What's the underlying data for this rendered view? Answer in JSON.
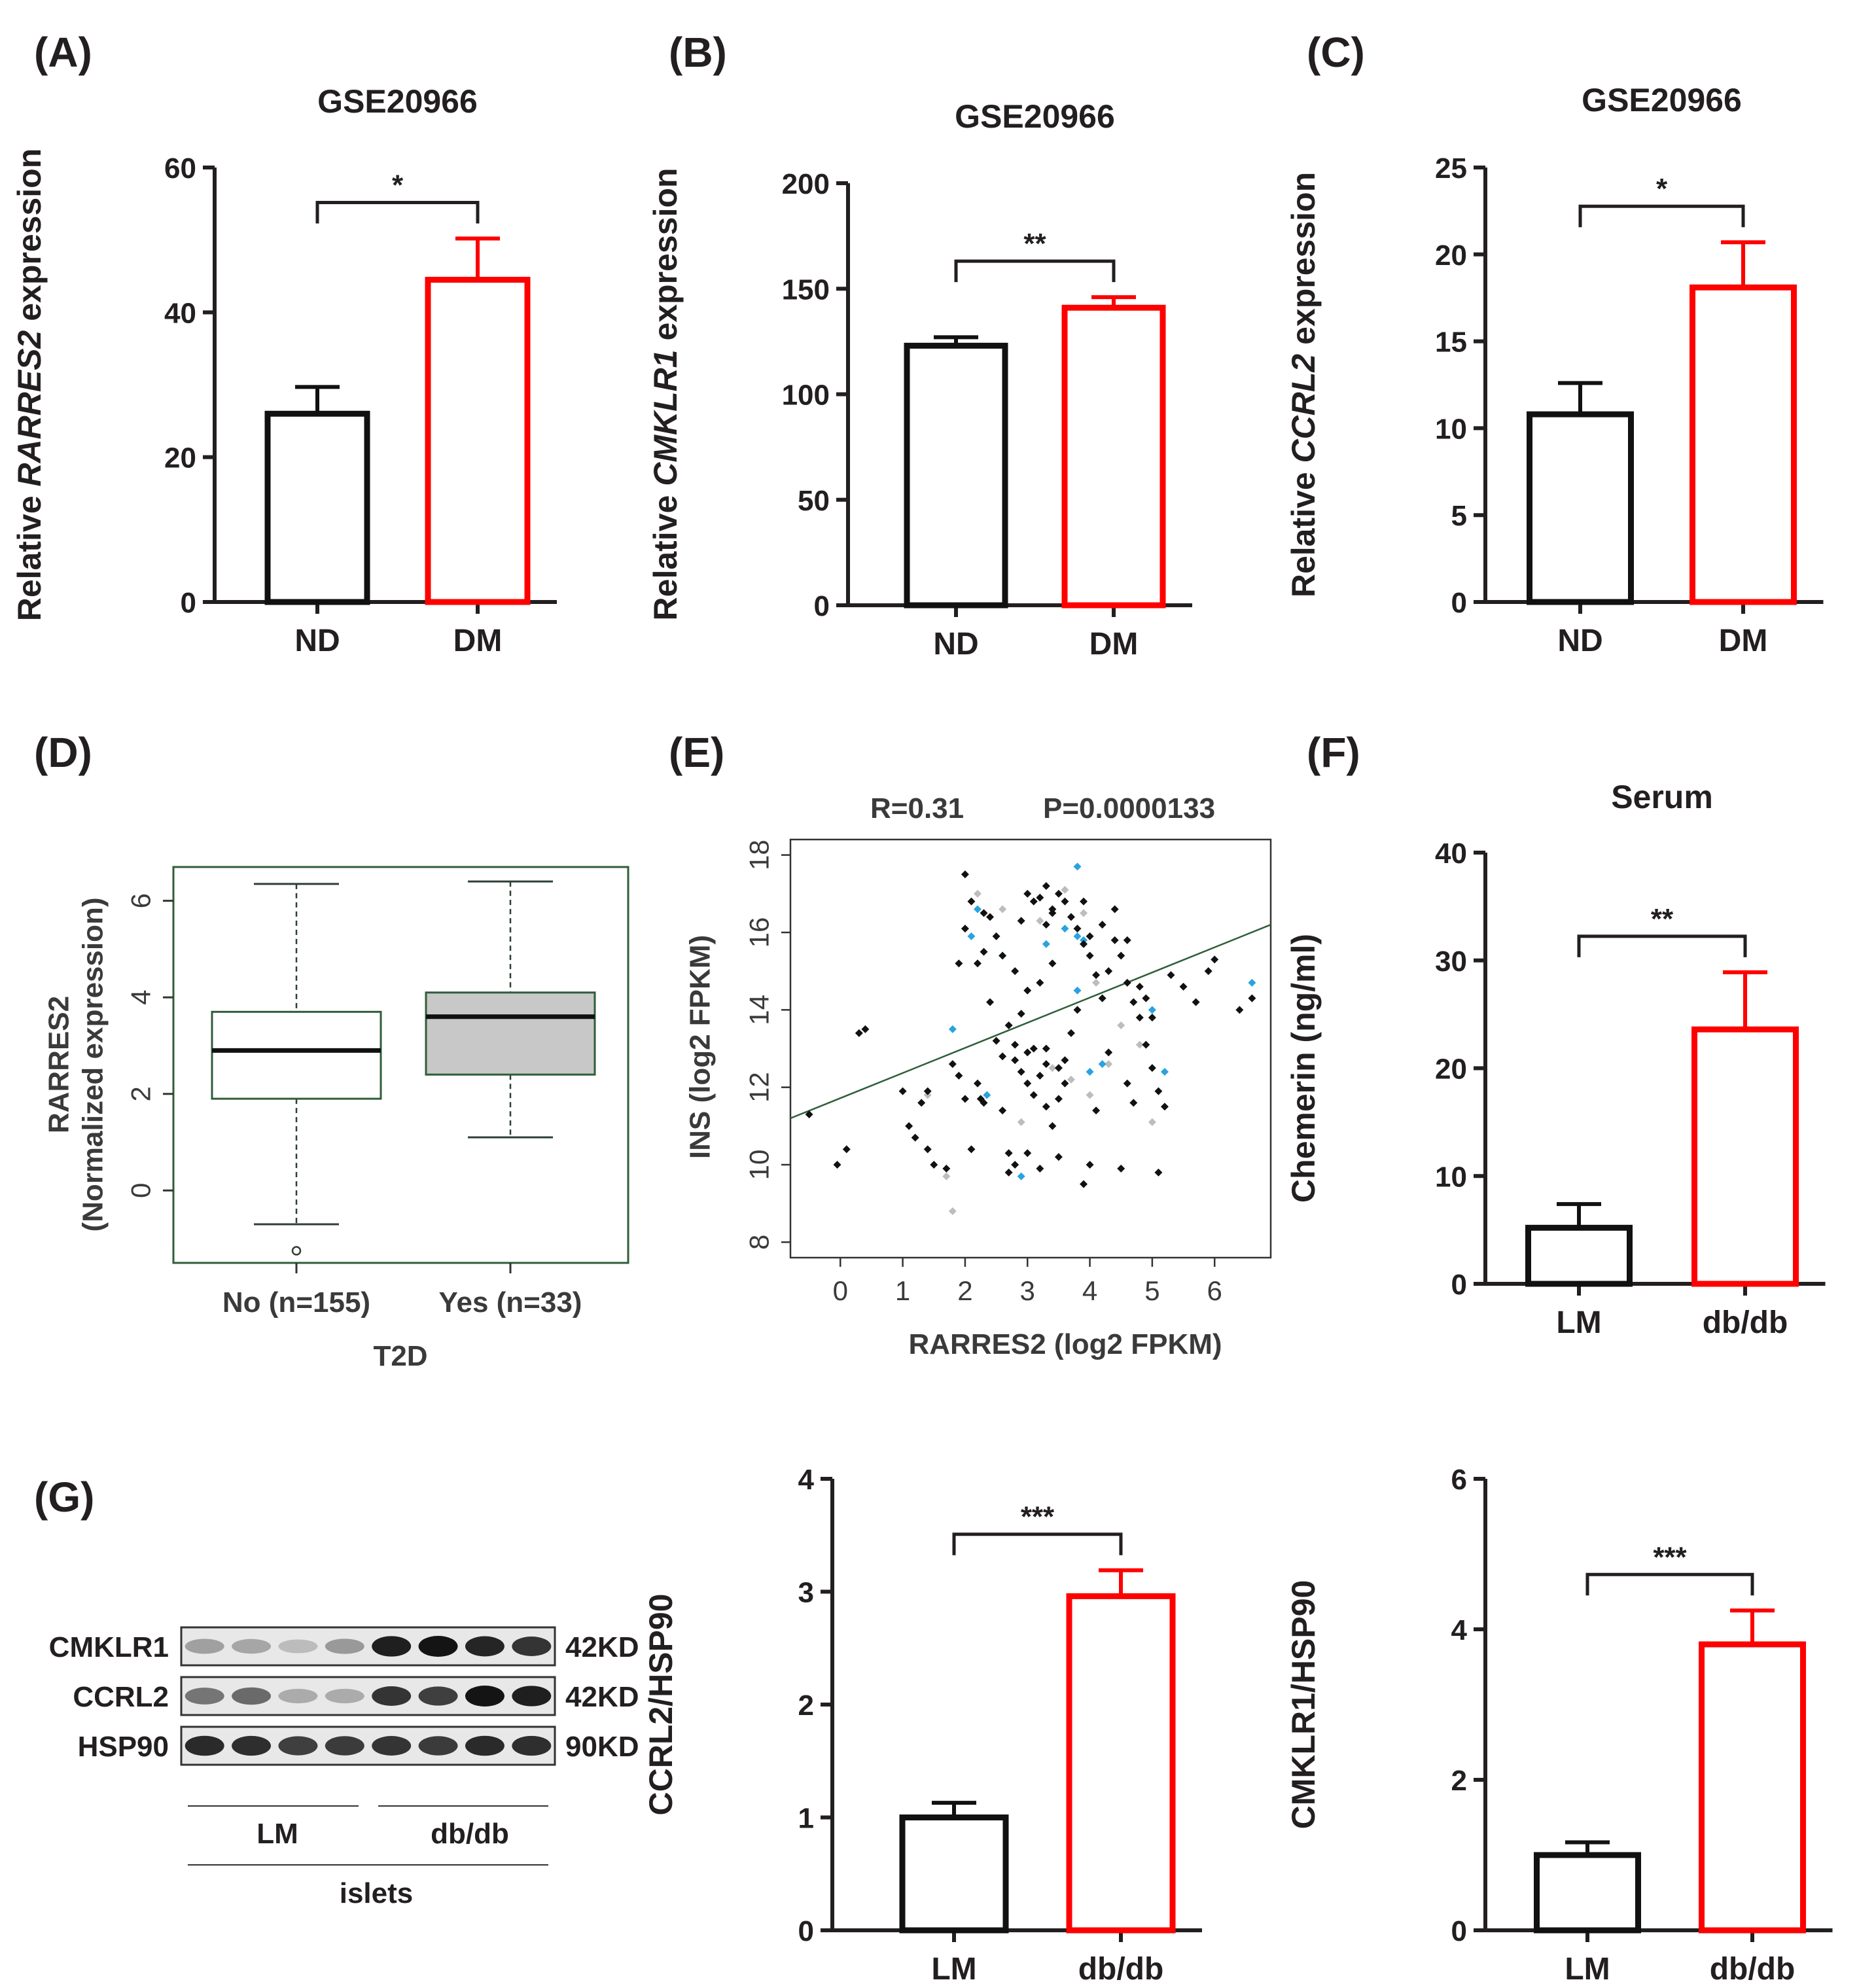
{
  "colors": {
    "black_bar": "#111111",
    "red_bar": "#ff0000",
    "text": "#231f20",
    "box_frame": "#2f5d3a",
    "box_fill_yes": "#c8c8c8",
    "fit_line": "#2f5d3a",
    "dot_black": "#111111",
    "dot_grey": "#bdbdbd",
    "dot_blue": "#29a3e0"
  },
  "panels": {
    "A": {
      "label": "(A)"
    },
    "B": {
      "label": "(B)"
    },
    "C": {
      "label": "(C)"
    },
    "D": {
      "label": "(D)"
    },
    "E": {
      "label": "(E)"
    },
    "F": {
      "label": "(F)"
    },
    "G": {
      "label": "(G)"
    }
  },
  "chart_data": [
    {
      "id": "A",
      "type": "bar",
      "title": "GSE20966",
      "ylabel_pre": "Relative ",
      "ylabel_gene": "RARRES2",
      "ylabel_post": " expression",
      "categories": [
        "ND",
        "DM"
      ],
      "values": [
        26,
        44.5
      ],
      "errors": [
        3.7,
        5.7
      ],
      "ylim": [
        0,
        60
      ],
      "yticks": [
        0,
        20,
        40,
        60
      ],
      "significance": "*"
    },
    {
      "id": "B",
      "type": "bar",
      "title": "GSE20966",
      "ylabel_pre": "Relative ",
      "ylabel_gene": "CMKLR1",
      "ylabel_post": " expression",
      "categories": [
        "ND",
        "DM"
      ],
      "values": [
        123,
        141
      ],
      "errors": [
        4,
        5
      ],
      "ylim": [
        0,
        200
      ],
      "yticks": [
        0,
        50,
        100,
        150,
        200
      ],
      "significance": "**"
    },
    {
      "id": "C",
      "type": "bar",
      "title": "GSE20966",
      "ylabel_pre": "Relative ",
      "ylabel_gene": "CCRL2",
      "ylabel_post": " expression",
      "categories": [
        "ND",
        "DM"
      ],
      "values": [
        10.8,
        18.1
      ],
      "errors": [
        1.8,
        2.6
      ],
      "ylim": [
        0,
        25
      ],
      "yticks": [
        0,
        5,
        10,
        15,
        20,
        25
      ],
      "significance": "*"
    },
    {
      "id": "D",
      "type": "box",
      "xlabel": "T2D",
      "ylabel_line1": "RARRES2",
      "ylabel_line2": "(Normalized expression)",
      "categories": [
        "No (n=155)",
        "Yes (n=33)"
      ],
      "ylim": [
        -1.5,
        6.7
      ],
      "yticks": [
        0,
        2,
        4,
        6
      ],
      "boxes": [
        {
          "whisker_low": -0.7,
          "q1": 1.9,
          "median": 2.9,
          "q3": 3.7,
          "whisker_high": 6.35,
          "outliers": [
            -1.25
          ]
        },
        {
          "whisker_low": 1.1,
          "q1": 2.4,
          "median": 3.6,
          "q3": 4.1,
          "whisker_high": 6.4,
          "outliers": []
        }
      ]
    },
    {
      "id": "E",
      "type": "scatter",
      "annotation_r": "R=0.31",
      "annotation_p": "P=0.0000133",
      "xlabel": "RARRES2 (log2 FPKM)",
      "ylabel": "INS (log2 FPKM)",
      "xlim": [
        -0.8,
        6.9
      ],
      "ylim": [
        7.6,
        18.4
      ],
      "xticks": [
        0,
        1,
        2,
        3,
        4,
        5,
        6
      ],
      "yticks": [
        8,
        10,
        12,
        14,
        16,
        18
      ],
      "fit_line": {
        "x": [
          -0.8,
          6.9
        ],
        "y": [
          11.2,
          16.2
        ]
      },
      "points_black": [
        [
          -0.5,
          11.3
        ],
        [
          -0.05,
          10
        ],
        [
          0.3,
          13.4
        ],
        [
          0.4,
          13.5
        ],
        [
          0.1,
          10.4
        ],
        [
          1.0,
          11.9
        ],
        [
          1.1,
          11.0
        ],
        [
          1.2,
          10.7
        ],
        [
          1.3,
          11.6
        ],
        [
          1.4,
          10.4
        ],
        [
          1.5,
          10.0
        ],
        [
          1.7,
          9.9
        ],
        [
          1.8,
          12.6
        ],
        [
          1.9,
          12.3
        ],
        [
          2.0,
          11.7
        ],
        [
          2.1,
          10.4
        ],
        [
          2.2,
          12.1
        ],
        [
          2.25,
          11.7
        ],
        [
          1.9,
          15.2
        ],
        [
          2.0,
          16.1
        ],
        [
          2.1,
          16.8
        ],
        [
          2.3,
          15.5
        ],
        [
          2.4,
          14.2
        ],
        [
          2.5,
          13.2
        ],
        [
          2.6,
          12.8
        ],
        [
          2.6,
          11.4
        ],
        [
          2.7,
          10.3
        ],
        [
          2.7,
          9.8
        ],
        [
          2.8,
          12.7
        ],
        [
          2.9,
          13.9
        ],
        [
          3.0,
          14.5
        ],
        [
          3.0,
          12.1
        ],
        [
          3.1,
          11.8
        ],
        [
          3.2,
          12.3
        ],
        [
          3.3,
          13.0
        ],
        [
          3.3,
          16.2
        ],
        [
          3.4,
          16.5
        ],
        [
          3.5,
          17.0
        ],
        [
          3.6,
          16.8
        ],
        [
          3.7,
          16.4
        ],
        [
          3.8,
          16.1
        ],
        [
          3.9,
          15.7
        ],
        [
          4.0,
          15.4
        ],
        [
          4.1,
          14.9
        ],
        [
          4.2,
          14.3
        ],
        [
          4.3,
          15.0
        ],
        [
          4.4,
          15.8
        ],
        [
          4.5,
          15.4
        ],
        [
          4.6,
          14.7
        ],
        [
          4.7,
          14.2
        ],
        [
          4.8,
          13.8
        ],
        [
          4.9,
          13.1
        ],
        [
          5.0,
          12.5
        ],
        [
          5.1,
          11.9
        ],
        [
          5.2,
          11.5
        ],
        [
          5.3,
          14.9
        ],
        [
          5.5,
          14.6
        ],
        [
          5.7,
          14.2
        ],
        [
          5.9,
          15.0
        ],
        [
          6.0,
          15.3
        ],
        [
          6.4,
          14.0
        ],
        [
          6.6,
          14.3
        ],
        [
          5.1,
          9.8
        ],
        [
          3.9,
          9.5
        ],
        [
          4.0,
          10.0
        ],
        [
          4.1,
          11.4
        ],
        [
          3.6,
          12.7
        ],
        [
          3.2,
          14.7
        ],
        [
          3.8,
          14.0
        ],
        [
          2.5,
          15.9
        ],
        [
          2.9,
          16.3
        ],
        [
          3.0,
          17.0
        ],
        [
          3.1,
          16.8
        ],
        [
          3.2,
          16.9
        ],
        [
          3.3,
          17.2
        ],
        [
          3.4,
          16.6
        ],
        [
          2.0,
          17.5
        ],
        [
          2.4,
          16.4
        ],
        [
          2.6,
          15.4
        ],
        [
          2.8,
          15.0
        ],
        [
          4.6,
          12.1
        ],
        [
          4.7,
          11.6
        ],
        [
          4.3,
          12.9
        ],
        [
          3.0,
          10.3
        ],
        [
          3.5,
          10.2
        ],
        [
          3.2,
          9.9
        ],
        [
          4.5,
          9.9
        ],
        [
          2.3,
          11.6
        ],
        [
          2.8,
          10.0
        ],
        [
          3.3,
          12.6
        ],
        [
          3.5,
          11.7
        ],
        [
          3.6,
          12.1
        ],
        [
          3.7,
          13.4
        ],
        [
          3.4,
          15.2
        ],
        [
          3.9,
          16.8
        ],
        [
          4.0,
          15.9
        ],
        [
          4.2,
          16.2
        ],
        [
          4.4,
          16.6
        ],
        [
          4.6,
          15.8
        ],
        [
          2.9,
          12.4
        ],
        [
          3.1,
          13.0
        ],
        [
          3.0,
          12.9
        ],
        [
          3.3,
          11.5
        ],
        [
          3.4,
          11.0
        ],
        [
          3.5,
          12.5
        ],
        [
          4.8,
          14.6
        ],
        [
          4.9,
          14.3
        ],
        [
          5.0,
          13.8
        ],
        [
          2.2,
          15.2
        ],
        [
          2.3,
          16.5
        ],
        [
          2.7,
          13.6
        ],
        [
          2.8,
          13.1
        ],
        [
          1.4,
          11.9
        ]
      ],
      "points_grey": [
        [
          1.7,
          9.7
        ],
        [
          1.8,
          8.8
        ],
        [
          2.2,
          17.0
        ],
        [
          2.6,
          16.6
        ],
        [
          3.2,
          16.3
        ],
        [
          3.4,
          12.5
        ],
        [
          3.7,
          12.2
        ],
        [
          4.0,
          11.8
        ],
        [
          4.1,
          14.7
        ],
        [
          4.3,
          12.6
        ],
        [
          4.5,
          13.6
        ],
        [
          4.8,
          13.1
        ],
        [
          5.0,
          11.1
        ],
        [
          3.9,
          16.5
        ],
        [
          3.6,
          17.1
        ],
        [
          2.9,
          11.1
        ],
        [
          1.4,
          11.8
        ]
      ],
      "points_blue": [
        [
          1.8,
          13.5
        ],
        [
          2.1,
          15.9
        ],
        [
          2.2,
          16.6
        ],
        [
          2.35,
          11.8
        ],
        [
          2.6,
          15.4
        ],
        [
          2.9,
          9.7
        ],
        [
          3.3,
          15.7
        ],
        [
          3.6,
          16.1
        ],
        [
          3.8,
          17.7
        ],
        [
          3.8,
          14.5
        ],
        [
          3.9,
          15.8
        ],
        [
          4.0,
          12.4
        ],
        [
          4.2,
          12.6
        ],
        [
          5.0,
          14.0
        ],
        [
          5.2,
          12.4
        ],
        [
          6.6,
          14.7
        ],
        [
          3.8,
          15.9
        ]
      ]
    },
    {
      "id": "F",
      "type": "bar",
      "title": "Serum",
      "ylabel": "Chemerin (ng/ml)",
      "categories": [
        "LM",
        "db/db"
      ],
      "values": [
        5.2,
        23.6
      ],
      "errors": [
        2.2,
        5.3
      ],
      "ylim": [
        0,
        40
      ],
      "yticks": [
        0,
        10,
        20,
        30,
        40
      ],
      "significance": "**"
    },
    {
      "id": "G2",
      "type": "bar",
      "title": "",
      "ylabel": "CCRL2/HSP90",
      "categories": [
        "LM",
        "db/db"
      ],
      "values": [
        1.0,
        2.96
      ],
      "errors": [
        0.13,
        0.23
      ],
      "ylim": [
        0,
        4
      ],
      "yticks": [
        0,
        1,
        2,
        3,
        4
      ],
      "significance": "***"
    },
    {
      "id": "G3",
      "type": "bar",
      "title": "",
      "ylabel": "CMKLR1/HSP90",
      "categories": [
        "LM",
        "db/db"
      ],
      "values": [
        1.0,
        3.8
      ],
      "errors": [
        0.17,
        0.45
      ],
      "ylim": [
        0,
        6
      ],
      "yticks": [
        0,
        2,
        4,
        6
      ],
      "significance": "***"
    }
  ],
  "western_blot": {
    "rows": [
      {
        "protein": "CMKLR1",
        "size": "42KD",
        "intensities": [
          0.35,
          0.32,
          0.22,
          0.38,
          0.95,
          1.0,
          0.92,
          0.85
        ]
      },
      {
        "protein": "CCRL2",
        "size": "42KD",
        "intensities": [
          0.55,
          0.6,
          0.3,
          0.3,
          0.85,
          0.8,
          1.0,
          0.95
        ]
      },
      {
        "protein": "HSP90",
        "size": "90KD",
        "intensities": [
          0.9,
          0.88,
          0.8,
          0.82,
          0.85,
          0.82,
          0.9,
          0.88
        ]
      }
    ],
    "group_labels": [
      "LM",
      "db/db"
    ],
    "tissue_label": "islets"
  }
}
